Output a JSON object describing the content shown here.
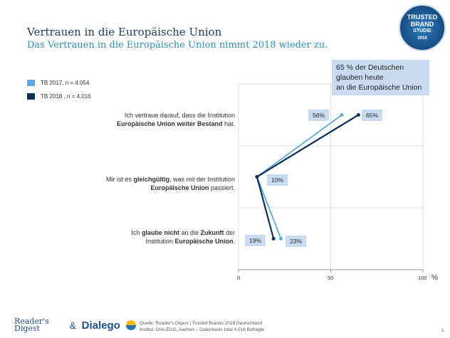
{
  "header": {
    "title": "Vertrauen in die Europäische Union",
    "subtitle": "Das Vertrauen in die Europäische Union nimmt 2018 wieder zu."
  },
  "badge": {
    "lines": [
      "TRUSTED",
      "BRAND",
      "STUDIE",
      "2018"
    ]
  },
  "callout": {
    "lines": [
      "65 % der Deutschen",
      "glauben heute",
      "an die Europäische Union"
    ]
  },
  "chart_data": {
    "type": "line",
    "orientation": "horizontal",
    "categories": [
      {
        "pre": "Ich vertraue darauf, dass die Institution",
        "b1": "Europäische Union weiter Bestand",
        "post": " hat."
      },
      {
        "pre": "Mir ist es ",
        "b0": "gleichgültig",
        "mid": ", was mit der Institution",
        "b1": "Europäische Union",
        "post": " passiert."
      },
      {
        "pre": "Ich ",
        "b0": "glaube nicht",
        "mid": " an die ",
        "b2": "Zukunft",
        "mid2": " der",
        "line2pre": "Institution ",
        "b1": "Europäische Union",
        "post": "."
      }
    ],
    "series": [
      {
        "name": "TB 2017,  n = 4.054",
        "color": "#5ea9de",
        "values": [
          56,
          10,
          23
        ],
        "labels": [
          "56%",
          "10%",
          "23%"
        ]
      },
      {
        "name": "TB 2018 , n = 4.016",
        "color": "#0f2f55",
        "values": [
          65,
          10,
          19
        ],
        "labels": [
          "65%",
          "",
          "19%"
        ]
      }
    ],
    "xlim": [
      0,
      100
    ],
    "xticks": [
      "0",
      "50",
      "100"
    ],
    "xunit": "%",
    "grid": true,
    "legend": "top-left"
  },
  "footer": {
    "logo1": "Reader's Digest",
    "amp": "&",
    "logo2": "Dialego",
    "source1": "Quelle:  Reader's Digest | Trusted Brands 2018 Deutschland",
    "source2": "Institut: DIALEGO, Aachen – Datenbasis total 4.016 Befragte",
    "page": "1"
  }
}
